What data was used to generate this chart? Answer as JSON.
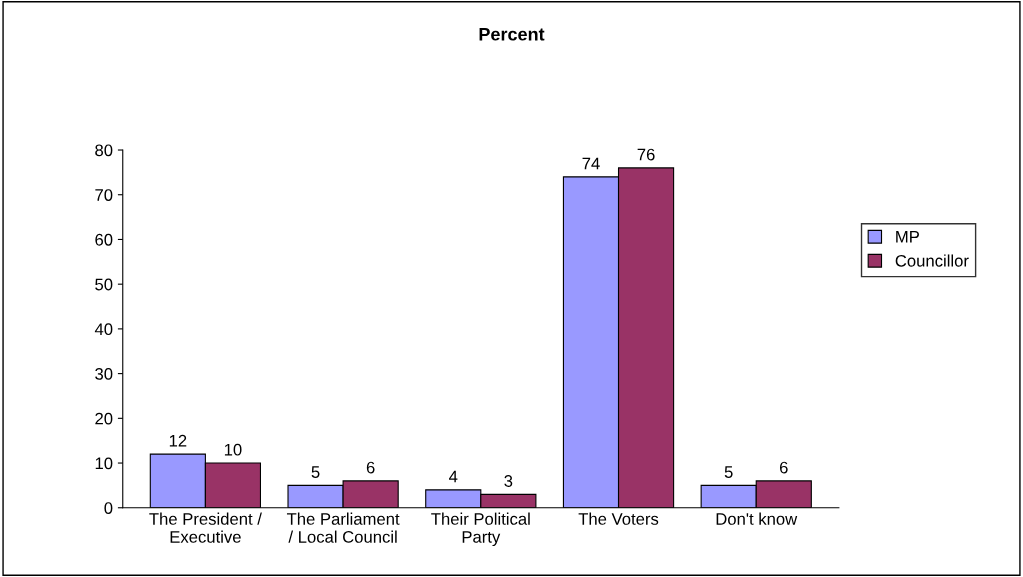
{
  "chart_data": {
    "type": "bar",
    "title": "Percent",
    "categories": [
      "The President /\nExecutive",
      "The Parliament\n/ Local Council",
      "Their Political\nParty",
      "The Voters",
      "Don't know"
    ],
    "series": [
      {
        "name": "MP",
        "color": "#9999ff",
        "values": [
          12,
          5,
          4,
          74,
          5
        ]
      },
      {
        "name": "Councillor",
        "color": "#993366",
        "values": [
          10,
          6,
          3,
          76,
          6
        ]
      }
    ],
    "ylim": [
      0,
      80
    ],
    "yticks": [
      0,
      10,
      20,
      30,
      40,
      50,
      60,
      70,
      80
    ],
    "data_labels": true,
    "grid": false,
    "legend": "right"
  }
}
